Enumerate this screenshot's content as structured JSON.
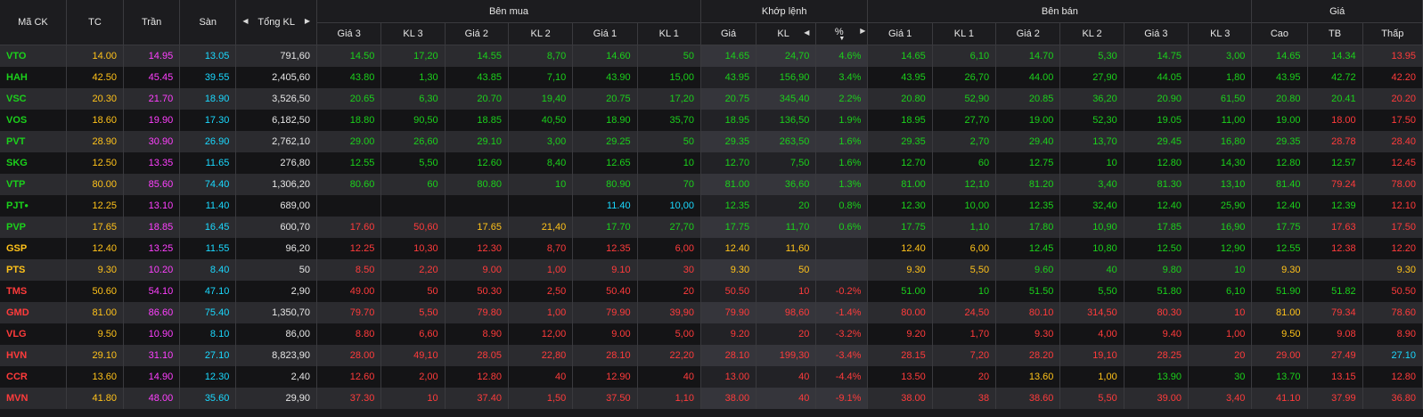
{
  "header": {
    "ma_ck": "Mã CK",
    "tc": "TC",
    "tran": "Trần",
    "san": "Sàn",
    "tong_kl": "Tổng KL",
    "ben_mua": "Bên mua",
    "khop_lenh": "Khớp lệnh",
    "ben_ban": "Bên bán",
    "gia": "Giá",
    "sub": {
      "gia3": "Giá 3",
      "kl3": "KL 3",
      "gia2": "Giá 2",
      "kl2": "KL 2",
      "gia1": "Giá 1",
      "kl1": "KL 1",
      "kgia": "Giá",
      "kkl": "KL",
      "pct": "%",
      "sgia1": "Giá 1",
      "skl1": "KL 1",
      "sgia2": "Giá 2",
      "skl2": "KL 2",
      "sgia3": "Giá 3",
      "skl3": "KL 3",
      "cao": "Cao",
      "tb": "TB",
      "thap": "Thấp"
    }
  },
  "colors": {
    "up": "#1bd11b",
    "down": "#ff3b3b",
    "ref": "#ffc21a",
    "floor": "#1ad9ff",
    "ceiling": "#ff40ff",
    "neutral": "#e6e6e6"
  },
  "rows": [
    {
      "sym": "VTO",
      "tc": "14.00",
      "tran": "14.95",
      "san": "13.05",
      "tkl": "791,60",
      "b3": "14.50",
      "bk3": "17,20",
      "b2": "14.55",
      "bk2": "8,70",
      "b1": "14.60",
      "bk1": "50",
      "kg": "14.65",
      "kk": "24,70",
      "pct": "4.6%",
      "s1": "14.65",
      "sk1": "6,10",
      "s2": "14.70",
      "sk2": "5,30",
      "s3": "14.75",
      "sk3": "3,00",
      "cao": "14.65",
      "tb": "14.34",
      "thap": "13.95"
    },
    {
      "sym": "HAH",
      "tc": "42.50",
      "tran": "45.45",
      "san": "39.55",
      "tkl": "2,405,60",
      "b3": "43.80",
      "bk3": "1,30",
      "b2": "43.85",
      "bk2": "7,10",
      "b1": "43.90",
      "bk1": "15,00",
      "kg": "43.95",
      "kk": "156,90",
      "pct": "3.4%",
      "s1": "43.95",
      "sk1": "26,70",
      "s2": "44.00",
      "sk2": "27,90",
      "s3": "44.05",
      "sk3": "1,80",
      "cao": "43.95",
      "tb": "42.72",
      "thap": "42.20"
    },
    {
      "sym": "VSC",
      "tc": "20.30",
      "tran": "21.70",
      "san": "18.90",
      "tkl": "3,526,50",
      "b3": "20.65",
      "bk3": "6,30",
      "b2": "20.70",
      "bk2": "19,40",
      "b1": "20.75",
      "bk1": "17,20",
      "kg": "20.75",
      "kk": "345,40",
      "pct": "2.2%",
      "s1": "20.80",
      "sk1": "52,90",
      "s2": "20.85",
      "sk2": "36,20",
      "s3": "20.90",
      "sk3": "61,50",
      "cao": "20.80",
      "tb": "20.41",
      "thap": "20.20"
    },
    {
      "sym": "VOS",
      "tc": "18.60",
      "tran": "19.90",
      "san": "17.30",
      "tkl": "6,182,50",
      "b3": "18.80",
      "bk3": "90,50",
      "b2": "18.85",
      "bk2": "40,50",
      "b1": "18.90",
      "bk1": "35,70",
      "kg": "18.95",
      "kk": "136,50",
      "pct": "1.9%",
      "s1": "18.95",
      "sk1": "27,70",
      "s2": "19.00",
      "sk2": "52,30",
      "s3": "19.05",
      "sk3": "11,00",
      "cao": "19.00",
      "tb": "18.00",
      "thap": "17.50"
    },
    {
      "sym": "PVT",
      "tc": "28.90",
      "tran": "30.90",
      "san": "26.90",
      "tkl": "2,762,10",
      "b3": "29.00",
      "bk3": "26,60",
      "b2": "29.10",
      "bk2": "3,00",
      "b1": "29.25",
      "bk1": "50",
      "kg": "29.35",
      "kk": "263,50",
      "pct": "1.6%",
      "s1": "29.35",
      "sk1": "2,70",
      "s2": "29.40",
      "sk2": "13,70",
      "s3": "29.45",
      "sk3": "16,80",
      "cao": "29.35",
      "tb": "28.78",
      "thap": "28.40"
    },
    {
      "sym": "SKG",
      "tc": "12.50",
      "tran": "13.35",
      "san": "11.65",
      "tkl": "276,80",
      "b3": "12.55",
      "bk3": "5,50",
      "b2": "12.60",
      "bk2": "8,40",
      "b1": "12.65",
      "bk1": "10",
      "kg": "12.70",
      "kk": "7,50",
      "pct": "1.6%",
      "s1": "12.70",
      "sk1": "60",
      "s2": "12.75",
      "sk2": "10",
      "s3": "12.80",
      "sk3": "14,30",
      "cao": "12.80",
      "tb": "12.57",
      "thap": "12.45"
    },
    {
      "sym": "VTP",
      "tc": "80.00",
      "tran": "85.60",
      "san": "74.40",
      "tkl": "1,306,20",
      "b3": "80.60",
      "bk3": "60",
      "b2": "80.80",
      "bk2": "10",
      "b1": "80.90",
      "bk1": "70",
      "kg": "81.00",
      "kk": "36,60",
      "pct": "1.3%",
      "s1": "81.00",
      "sk1": "12,10",
      "s2": "81.20",
      "sk2": "3,40",
      "s3": "81.30",
      "sk3": "13,10",
      "cao": "81.40",
      "tb": "79.24",
      "thap": "78.00"
    },
    {
      "sym": "PJT",
      "tc": "12.25",
      "tran": "13.10",
      "san": "11.40",
      "tkl": "689,00",
      "b3": "",
      "bk3": "",
      "b2": "",
      "bk2": "",
      "b1": "11.40",
      "bk1": "10,00",
      "kg": "12.35",
      "kk": "20",
      "pct": "0.8%",
      "s1": "12.30",
      "sk1": "10,00",
      "s2": "12.35",
      "sk2": "32,40",
      "s3": "12.40",
      "sk3": "25,90",
      "cao": "12.40",
      "tb": "12.39",
      "thap": "12.10"
    },
    {
      "sym": "PVP",
      "tc": "17.65",
      "tran": "18.85",
      "san": "16.45",
      "tkl": "600,70",
      "b3": "17.60",
      "bk3": "50,60",
      "b2": "17.65",
      "bk2": "21,40",
      "b1": "17.70",
      "bk1": "27,70",
      "kg": "17.75",
      "kk": "11,70",
      "pct": "0.6%",
      "s1": "17.75",
      "sk1": "1,10",
      "s2": "17.80",
      "sk2": "10,90",
      "s3": "17.85",
      "sk3": "16,90",
      "cao": "17.75",
      "tb": "17.63",
      "thap": "17.50"
    },
    {
      "sym": "GSP",
      "tc": "12.40",
      "tran": "13.25",
      "san": "11.55",
      "tkl": "96,20",
      "b3": "12.25",
      "bk3": "10,30",
      "b2": "12.30",
      "bk2": "8,70",
      "b1": "12.35",
      "bk1": "6,00",
      "kg": "12.40",
      "kk": "11,60",
      "pct": "",
      "s1": "12.40",
      "sk1": "6,00",
      "s2": "12.45",
      "sk2": "10,80",
      "s3": "12.50",
      "sk3": "12,90",
      "cao": "12.55",
      "tb": "12.38",
      "thap": "12.20"
    },
    {
      "sym": "PTS",
      "tc": "9.30",
      "tran": "10.20",
      "san": "8.40",
      "tkl": "50",
      "b3": "8.50",
      "bk3": "2,20",
      "b2": "9.00",
      "bk2": "1,00",
      "b1": "9.10",
      "bk1": "30",
      "kg": "9.30",
      "kk": "50",
      "pct": "",
      "s1": "9.30",
      "sk1": "5,50",
      "s2": "9.60",
      "sk2": "40",
      "s3": "9.80",
      "sk3": "10",
      "cao": "9.30",
      "tb": "",
      "thap": "9.30"
    },
    {
      "sym": "TMS",
      "tc": "50.60",
      "tran": "54.10",
      "san": "47.10",
      "tkl": "2,90",
      "b3": "49.00",
      "bk3": "50",
      "b2": "50.30",
      "bk2": "2,50",
      "b1": "50.40",
      "bk1": "20",
      "kg": "50.50",
      "kk": "10",
      "pct": "-0.2%",
      "s1": "51.00",
      "sk1": "10",
      "s2": "51.50",
      "sk2": "5,50",
      "s3": "51.80",
      "sk3": "6,10",
      "cao": "51.90",
      "tb": "51.82",
      "thap": "50.50"
    },
    {
      "sym": "GMD",
      "tc": "81.00",
      "tran": "86.60",
      "san": "75.40",
      "tkl": "1,350,70",
      "b3": "79.70",
      "bk3": "5,50",
      "b2": "79.80",
      "bk2": "1,00",
      "b1": "79.90",
      "bk1": "39,90",
      "kg": "79.90",
      "kk": "98,60",
      "pct": "-1.4%",
      "s1": "80.00",
      "sk1": "24,50",
      "s2": "80.10",
      "sk2": "314,50",
      "s3": "80.30",
      "sk3": "10",
      "cao": "81.00",
      "tb": "79.34",
      "thap": "78.60"
    },
    {
      "sym": "VLG",
      "tc": "9.50",
      "tran": "10.90",
      "san": "8.10",
      "tkl": "86,00",
      "b3": "8.80",
      "bk3": "6,60",
      "b2": "8.90",
      "bk2": "12,00",
      "b1": "9.00",
      "bk1": "5,00",
      "kg": "9.20",
      "kk": "20",
      "pct": "-3.2%",
      "s1": "9.20",
      "sk1": "1,70",
      "s2": "9.30",
      "sk2": "4,00",
      "s3": "9.40",
      "sk3": "1,00",
      "cao": "9.50",
      "tb": "9.08",
      "thap": "8.90"
    },
    {
      "sym": "HVN",
      "tc": "29.10",
      "tran": "31.10",
      "san": "27.10",
      "tkl": "8,823,90",
      "b3": "28.00",
      "bk3": "49,10",
      "b2": "28.05",
      "bk2": "22,80",
      "b1": "28.10",
      "bk1": "22,20",
      "kg": "28.10",
      "kk": "199,30",
      "pct": "-3.4%",
      "s1": "28.15",
      "sk1": "7,20",
      "s2": "28.20",
      "sk2": "19,10",
      "s3": "28.25",
      "sk3": "20",
      "cao": "29.00",
      "tb": "27.49",
      "thap": "27.10"
    },
    {
      "sym": "CCR",
      "tc": "13.60",
      "tran": "14.90",
      "san": "12.30",
      "tkl": "2,40",
      "b3": "12.60",
      "bk3": "2,00",
      "b2": "12.80",
      "bk2": "40",
      "b1": "12.90",
      "bk1": "40",
      "kg": "13.00",
      "kk": "40",
      "pct": "-4.4%",
      "s1": "13.50",
      "sk1": "20",
      "s2": "13.60",
      "sk2": "1,00",
      "s3": "13.90",
      "sk3": "30",
      "cao": "13.70",
      "tb": "13.15",
      "thap": "12.80"
    },
    {
      "sym": "MVN",
      "tc": "41.80",
      "tran": "48.00",
      "san": "35.60",
      "tkl": "29,90",
      "b3": "37.30",
      "bk3": "10",
      "b2": "37.40",
      "bk2": "1,50",
      "b1": "37.50",
      "bk1": "1,10",
      "kg": "38.00",
      "kk": "40",
      "pct": "-9.1%",
      "s1": "38.00",
      "sk1": "38",
      "s2": "38.60",
      "sk2": "5,50",
      "s3": "39.00",
      "sk3": "3,40",
      "cao": "41.10",
      "tb": "37.99",
      "thap": "36.80"
    }
  ]
}
